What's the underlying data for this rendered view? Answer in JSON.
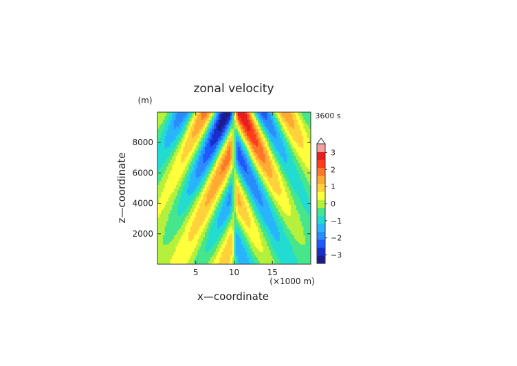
{
  "chart_data": {
    "type": "heatmap",
    "title": "zonal velocity",
    "xlabel": "x—coordinate",
    "ylabel": "z—coordinate",
    "x_unit": "(×1000 m)",
    "y_unit": "(m)",
    "time_label": "3600 s",
    "xlim": [
      0,
      20
    ],
    "ylim": [
      0,
      10000
    ],
    "x_ticks": [
      5,
      10,
      15
    ],
    "x_tick_labels": [
      "5",
      "10",
      "15"
    ],
    "y_ticks": [
      2000,
      4000,
      6000,
      8000
    ],
    "y_tick_labels": [
      "2000",
      "4000",
      "6000",
      "8000"
    ],
    "colorbar": {
      "levels": [
        -3.5,
        -3.0,
        -2.5,
        -2.0,
        -1.5,
        -1.0,
        -0.5,
        0,
        0.5,
        1.0,
        1.5,
        2.0,
        2.5,
        3.0,
        3.5
      ],
      "colors": [
        "#1c1c8c",
        "#1a2ec8",
        "#1e5aff",
        "#2a8cff",
        "#28b4ff",
        "#22dcd2",
        "#46e68c",
        "#b4f03c",
        "#ffff3c",
        "#ffd23c",
        "#ffaa32",
        "#ff7828",
        "#ff3c1e",
        "#e61e1e",
        "#f0a0a0"
      ],
      "ticks": [
        -3,
        -2,
        -1,
        0,
        1,
        2,
        3
      ],
      "tick_labels": [
        "−3",
        "−2",
        "−1",
        "0",
        "1",
        "2",
        "3"
      ],
      "extend": "max"
    },
    "field_description": "antisymmetric wave pattern about x=10; alternating positive/negative bands slanting upward-outward",
    "grid": false,
    "legend": "colorbar right"
  }
}
